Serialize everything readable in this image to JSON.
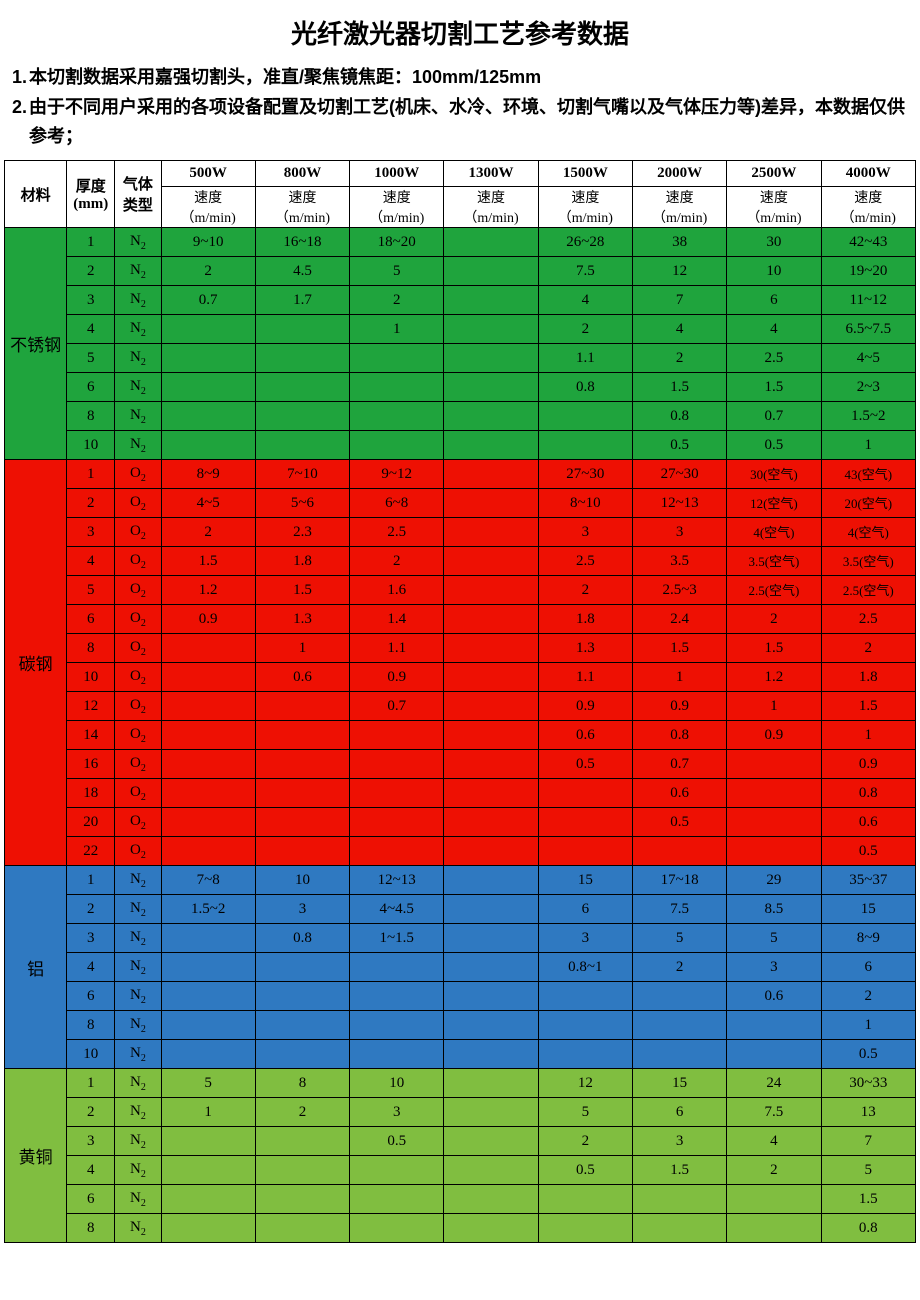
{
  "title": "光纤激光器切割工艺参考数据",
  "notes": [
    "本切割数据采用嘉强切割头，准直/聚焦镜焦距：100mm/125mm",
    "由于不同用户采用的各项设备配置及切割工艺(机床、水冷、环境、切割气嘴以及气体压力等)差异，本数据仅供参考；"
  ],
  "header": {
    "material": "材料",
    "thickness": "厚度\n(mm)",
    "gas": "气体\n类型",
    "speed_label": "速度\n（m/min)",
    "powers": [
      "500W",
      "800W",
      "1000W",
      "1300W",
      "1500W",
      "2000W",
      "2500W",
      "4000W"
    ]
  },
  "materials": [
    {
      "name": "不锈钢",
      "color": "#1fa43d",
      "rows": [
        {
          "th": "1",
          "gas": "N₂",
          "v": [
            "9~10",
            "16~18",
            "18~20",
            "",
            "26~28",
            "38",
            "30",
            "42~43"
          ]
        },
        {
          "th": "2",
          "gas": "N₂",
          "v": [
            "2",
            "4.5",
            "5",
            "",
            "7.5",
            "12",
            "10",
            "19~20"
          ]
        },
        {
          "th": "3",
          "gas": "N₂",
          "v": [
            "0.7",
            "1.7",
            "2",
            "",
            "4",
            "7",
            "6",
            "11~12"
          ]
        },
        {
          "th": "4",
          "gas": "N₂",
          "v": [
            "",
            "",
            "1",
            "",
            "2",
            "4",
            "4",
            "6.5~7.5"
          ]
        },
        {
          "th": "5",
          "gas": "N₂",
          "v": [
            "",
            "",
            "",
            "",
            "1.1",
            "2",
            "2.5",
            "4~5"
          ]
        },
        {
          "th": "6",
          "gas": "N₂",
          "v": [
            "",
            "",
            "",
            "",
            "0.8",
            "1.5",
            "1.5",
            "2~3"
          ]
        },
        {
          "th": "8",
          "gas": "N₂",
          "v": [
            "",
            "",
            "",
            "",
            "",
            "0.8",
            "0.7",
            "1.5~2"
          ]
        },
        {
          "th": "10",
          "gas": "N₂",
          "v": [
            "",
            "",
            "",
            "",
            "",
            "0.5",
            "0.5",
            "1"
          ]
        }
      ]
    },
    {
      "name": "碳钢",
      "color": "#ee1003",
      "rows": [
        {
          "th": "1",
          "gas": "O₂",
          "v": [
            "8~9",
            "7~10",
            "9~12",
            "",
            "27~30",
            "27~30",
            "30(空气)",
            "43(空气)"
          ]
        },
        {
          "th": "2",
          "gas": "O₂",
          "v": [
            "4~5",
            "5~6",
            "6~8",
            "",
            "8~10",
            "12~13",
            "12(空气)",
            "20(空气)"
          ]
        },
        {
          "th": "3",
          "gas": "O₂",
          "v": [
            "2",
            "2.3",
            "2.5",
            "",
            "3",
            "3",
            "4(空气)",
            "4(空气)"
          ]
        },
        {
          "th": "4",
          "gas": "O₂",
          "v": [
            "1.5",
            "1.8",
            "2",
            "",
            "2.5",
            "3.5",
            "3.5(空气)",
            "3.5(空气)"
          ]
        },
        {
          "th": "5",
          "gas": "O₂",
          "v": [
            "1.2",
            "1.5",
            "1.6",
            "",
            "2",
            "2.5~3",
            "2.5(空气)",
            "2.5(空气)"
          ]
        },
        {
          "th": "6",
          "gas": "O₂",
          "v": [
            "0.9",
            "1.3",
            "1.4",
            "",
            "1.8",
            "2.4",
            "2",
            "2.5"
          ]
        },
        {
          "th": "8",
          "gas": "O₂",
          "v": [
            "",
            "1",
            "1.1",
            "",
            "1.3",
            "1.5",
            "1.5",
            "2"
          ]
        },
        {
          "th": "10",
          "gas": "O₂",
          "v": [
            "",
            "0.6",
            "0.9",
            "",
            "1.1",
            "1",
            "1.2",
            "1.8"
          ]
        },
        {
          "th": "12",
          "gas": "O₂",
          "v": [
            "",
            "",
            "0.7",
            "",
            "0.9",
            "0.9",
            "1",
            "1.5"
          ]
        },
        {
          "th": "14",
          "gas": "O₂",
          "v": [
            "",
            "",
            "",
            "",
            "0.6",
            "0.8",
            "0.9",
            "1"
          ]
        },
        {
          "th": "16",
          "gas": "O₂",
          "v": [
            "",
            "",
            "",
            "",
            "0.5",
            "0.7",
            "",
            "0.9"
          ]
        },
        {
          "th": "18",
          "gas": "O₂",
          "v": [
            "",
            "",
            "",
            "",
            "",
            "0.6",
            "",
            "0.8"
          ]
        },
        {
          "th": "20",
          "gas": "O₂",
          "v": [
            "",
            "",
            "",
            "",
            "",
            "0.5",
            "",
            "0.6"
          ]
        },
        {
          "th": "22",
          "gas": "O₂",
          "v": [
            "",
            "",
            "",
            "",
            "",
            "",
            "",
            "0.5"
          ]
        }
      ]
    },
    {
      "name": "铝",
      "color": "#2f79c1",
      "rows": [
        {
          "th": "1",
          "gas": "N₂",
          "v": [
            "7~8",
            "10",
            "12~13",
            "",
            "15",
            "17~18",
            "29",
            "35~37"
          ]
        },
        {
          "th": "2",
          "gas": "N₂",
          "v": [
            "1.5~2",
            "3",
            "4~4.5",
            "",
            "6",
            "7.5",
            "8.5",
            "15"
          ]
        },
        {
          "th": "3",
          "gas": "N₂",
          "v": [
            "",
            "0.8",
            "1~1.5",
            "",
            "3",
            "5",
            "5",
            "8~9"
          ]
        },
        {
          "th": "4",
          "gas": "N₂",
          "v": [
            "",
            "",
            "",
            "",
            "0.8~1",
            "2",
            "3",
            "6"
          ]
        },
        {
          "th": "6",
          "gas": "N₂",
          "v": [
            "",
            "",
            "",
            "",
            "",
            "",
            "0.6",
            "2"
          ]
        },
        {
          "th": "8",
          "gas": "N₂",
          "v": [
            "",
            "",
            "",
            "",
            "",
            "",
            "",
            "1"
          ]
        },
        {
          "th": "10",
          "gas": "N₂",
          "v": [
            "",
            "",
            "",
            "",
            "",
            "",
            "",
            "0.5"
          ]
        }
      ]
    },
    {
      "name": "黄铜",
      "color": "#80be40",
      "rows": [
        {
          "th": "1",
          "gas": "N₂",
          "v": [
            "5",
            "8",
            "10",
            "",
            "12",
            "15",
            "24",
            "30~33"
          ]
        },
        {
          "th": "2",
          "gas": "N₂",
          "v": [
            "1",
            "2",
            "3",
            "",
            "5",
            "6",
            "7.5",
            "13"
          ]
        },
        {
          "th": "3",
          "gas": "N₂",
          "v": [
            "",
            "",
            "0.5",
            "",
            "2",
            "3",
            "4",
            "7"
          ]
        },
        {
          "th": "4",
          "gas": "N₂",
          "v": [
            "",
            "",
            "",
            "",
            "0.5",
            "1.5",
            "2",
            "5"
          ]
        },
        {
          "th": "6",
          "gas": "N₂",
          "v": [
            "",
            "",
            "",
            "",
            "",
            "",
            "",
            "1.5"
          ]
        },
        {
          "th": "8",
          "gas": "N₂",
          "v": [
            "",
            "",
            "",
            "",
            "",
            "",
            "",
            "0.8"
          ]
        }
      ]
    }
  ]
}
